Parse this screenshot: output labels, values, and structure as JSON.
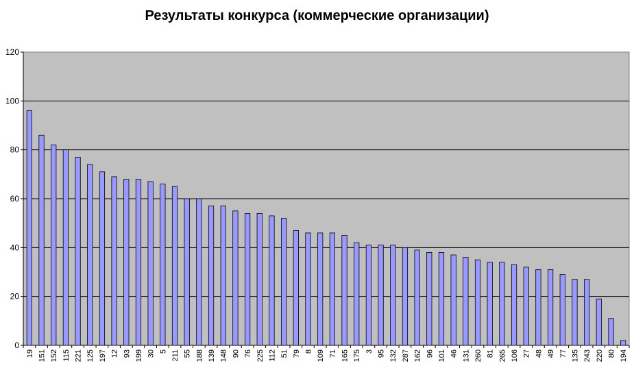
{
  "chart_data": {
    "type": "bar",
    "title": "Результаты конкурса (коммерческие организации)",
    "xlabel": "",
    "ylabel": "",
    "ylim": [
      0,
      120
    ],
    "yticks": [
      "0",
      "20",
      "40",
      "60",
      "80",
      "100",
      "120"
    ],
    "grid": true,
    "legend": "none",
    "categories": [
      "19",
      "151",
      "152",
      "115",
      "221",
      "125",
      "197",
      "12",
      "93",
      "199",
      "30",
      "5",
      "211",
      "55",
      "188",
      "139",
      "148",
      "90",
      "76",
      "225",
      "112",
      "51",
      "79",
      "8",
      "109",
      "71",
      "165",
      "175",
      "3",
      "95",
      "132",
      "287",
      "162",
      "96",
      "101",
      "46",
      "131",
      "260",
      "81",
      "265",
      "106",
      "27",
      "48",
      "49",
      "77",
      "135",
      "243",
      "220",
      "80",
      "194"
    ],
    "values": [
      96,
      86,
      82,
      80,
      77,
      74,
      71,
      69,
      68,
      68,
      67,
      66,
      65,
      60,
      60,
      57,
      57,
      55,
      54,
      54,
      53,
      52,
      47,
      46,
      46,
      46,
      45,
      42,
      41,
      41,
      41,
      40,
      39,
      38,
      38,
      37,
      36,
      35,
      34,
      34,
      33,
      32,
      31,
      31,
      29,
      27,
      27,
      19,
      11,
      2
    ],
    "colors": {
      "plot_background": "#c0c0c0",
      "bar_fill": "#9999ff",
      "bar_stroke": "#000000",
      "grid": "#000000"
    }
  }
}
